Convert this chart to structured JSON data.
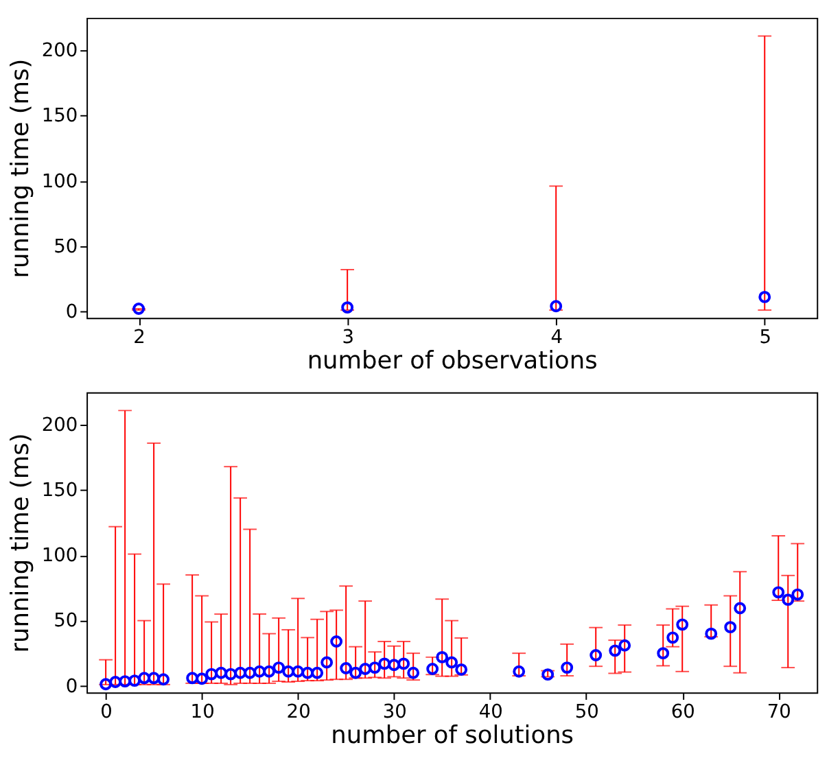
{
  "chart_data": [
    {
      "type": "scatter",
      "xlabel": "number of observations",
      "ylabel": "running time (ms)",
      "xlim": [
        1.75,
        5.25
      ],
      "ylim": [
        -5,
        225
      ],
      "xticks": [
        2,
        3,
        4,
        5
      ],
      "yticks": [
        0,
        50,
        100,
        150,
        200
      ],
      "grid": false,
      "marker": "circle",
      "series": [
        {
          "color": "#0000ff",
          "x": [
            2,
            3,
            4,
            5
          ],
          "values": [
            2,
            3,
            4,
            11
          ],
          "errors": [
            [
              1,
              2
            ],
            [
              1,
              32
            ],
            [
              1,
              96
            ],
            [
              1,
              211
            ]
          ]
        }
      ]
    },
    {
      "type": "scatter",
      "xlabel": "number of solutions",
      "ylabel": "running time (ms)",
      "xlim": [
        -2,
        74
      ],
      "ylim": [
        -5,
        225
      ],
      "xticks": [
        0,
        10,
        20,
        30,
        40,
        50,
        60,
        70
      ],
      "yticks": [
        0,
        50,
        100,
        150,
        200
      ],
      "grid": false,
      "marker": "circle",
      "series": [
        {
          "color": "#0000ff",
          "x": [
            0,
            1,
            2,
            3,
            4,
            5,
            6,
            9,
            10,
            11,
            12,
            13,
            14,
            15,
            16,
            17,
            18,
            19,
            20,
            21,
            22,
            23,
            24,
            25,
            26,
            27,
            28,
            29,
            30,
            31,
            32,
            34,
            35,
            36,
            37,
            43,
            46,
            48,
            51,
            53,
            54,
            58,
            59,
            60,
            63,
            65,
            66,
            70,
            71,
            72
          ],
          "values": [
            1.3,
            3,
            3.5,
            4,
            6,
            6,
            5,
            6,
            5.5,
            9,
            10,
            9,
            10,
            10,
            11,
            11,
            14,
            11,
            11,
            10,
            10,
            18,
            34,
            13.5,
            10,
            13,
            14,
            17,
            16,
            17,
            10,
            13,
            22,
            18,
            12.5,
            11,
            8.7,
            14,
            23.5,
            27,
            31,
            25,
            37,
            47,
            40,
            45,
            59.5,
            71.7,
            66,
            70
          ],
          "errors": [
            [
              1,
              20
            ],
            [
              1,
              122
            ],
            [
              1,
              211
            ],
            [
              1,
              101
            ],
            [
              1,
              50
            ],
            [
              1,
              186
            ],
            [
              1,
              78
            ],
            [
              2,
              85
            ],
            [
              2,
              69
            ],
            [
              2,
              49
            ],
            [
              2,
              55
            ],
            [
              1,
              168
            ],
            [
              2,
              144
            ],
            [
              2,
              120
            ],
            [
              2,
              55
            ],
            [
              2,
              40
            ],
            [
              3.5,
              52
            ],
            [
              3,
              43
            ],
            [
              3.5,
              67
            ],
            [
              4,
              37
            ],
            [
              4,
              51
            ],
            [
              4.5,
              57
            ],
            [
              5,
              58
            ],
            [
              5,
              76.5
            ],
            [
              6,
              30
            ],
            [
              6,
              65
            ],
            [
              6.5,
              26
            ],
            [
              6,
              34
            ],
            [
              7,
              30.5
            ],
            [
              6,
              34
            ],
            [
              4.5,
              25
            ],
            [
              8.7,
              22
            ],
            [
              7.4,
              66.5
            ],
            [
              7.4,
              50
            ],
            [
              8.4,
              36.7
            ],
            [
              7.7,
              25
            ],
            [
              7,
              11.6
            ],
            [
              7.7,
              32
            ],
            [
              15,
              44.7
            ],
            [
              9.6,
              35
            ],
            [
              10.6,
              46.6
            ],
            [
              15.4,
              46.6
            ],
            [
              30,
              59
            ],
            [
              11,
              61
            ],
            [
              37.6,
              62
            ],
            [
              15,
              69
            ],
            [
              10,
              87.5
            ],
            [
              65.6,
              115
            ],
            [
              14,
              84.6
            ],
            [
              65,
              109
            ]
          ]
        }
      ]
    }
  ]
}
